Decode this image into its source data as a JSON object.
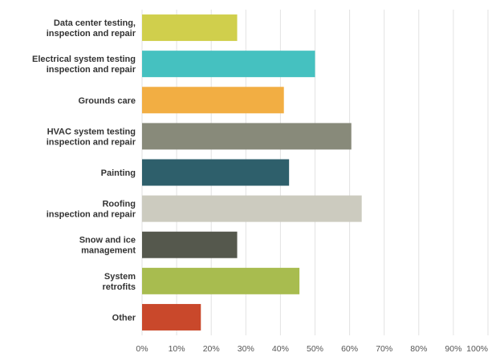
{
  "chart_data": {
    "type": "bar",
    "orientation": "horizontal",
    "categories": [
      [
        "Data center testing,",
        "inspection and repair"
      ],
      [
        "Electrical system testing",
        "inspection and repair"
      ],
      [
        "Grounds care"
      ],
      [
        "HVAC system testing",
        "inspection and repair"
      ],
      [
        "Painting"
      ],
      [
        "Roofing",
        "inspection and repair"
      ],
      [
        "Snow and ice",
        "management"
      ],
      [
        "System",
        "retrofits"
      ],
      [
        "Other"
      ]
    ],
    "values": [
      27.5,
      50,
      41,
      60.5,
      42.5,
      63.5,
      27.5,
      45.5,
      17
    ],
    "colors": [
      "#d0cf4c",
      "#45c1c0",
      "#f2ae43",
      "#888a7a",
      "#2e5f6b",
      "#cccbbf",
      "#55584d",
      "#a8bc4f",
      "#c9482b"
    ],
    "xlim": [
      0,
      100
    ],
    "xticks": [
      "0%",
      "10%",
      "20%",
      "30%",
      "40%",
      "50%",
      "60%",
      "70%",
      "80%",
      "90%",
      "100%"
    ],
    "grid": true
  }
}
